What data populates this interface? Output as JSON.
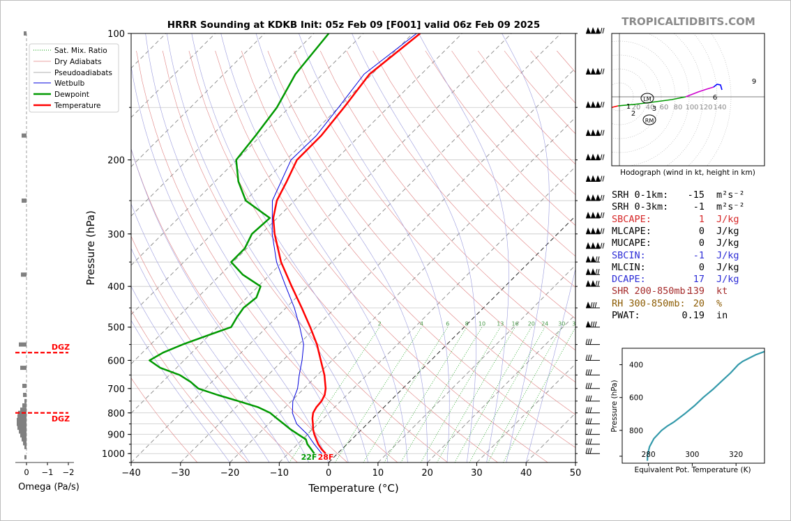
{
  "title": "HRRR Sounding at KDKB Init: 05z Feb 09 [F001] valid 06z Feb 09 2025",
  "watermark": "TROPICALTIDBITS.COM",
  "skewt": {
    "xlabel": "Temperature (°C)",
    "ylabel": "Pressure (hPa)",
    "xlim": [
      -40,
      50
    ],
    "ylim": [
      1050,
      100
    ],
    "x_ticks": [
      -40,
      -30,
      -20,
      -10,
      0,
      10,
      20,
      30,
      40,
      50
    ],
    "y_ticks": [
      100,
      200,
      300,
      400,
      500,
      600,
      700,
      800,
      900,
      1000
    ],
    "legend": [
      "Sat. Mix. Ratio",
      "Dry Adiabats",
      "Pseudoadiabats",
      "Wetbulb",
      "Dewpoint",
      "Temperature"
    ],
    "mixing_ratio_labels": [
      "2",
      "4",
      "6",
      "8",
      "10",
      "13",
      "16",
      "20",
      "24",
      "30",
      "36"
    ],
    "sfc_dewpoint_label": "22F",
    "sfc_temp_label": "28F"
  },
  "omega": {
    "xlabel": "Omega (Pa/s)",
    "x_ticks": [
      "0",
      "−1",
      "−2"
    ],
    "dgz_label": "DGZ",
    "dgz_bottom_hpa": 800,
    "dgz_top_hpa": 575
  },
  "hodograph": {
    "caption": "Hodograph (wind in kt, height in km)",
    "ring_labels": [
      "20",
      "40",
      "60",
      "80",
      "100",
      "120",
      "140"
    ],
    "height_labels": [
      "1",
      "2",
      "3",
      "6",
      "9"
    ],
    "lm_label": "LM",
    "rm_label": "RM"
  },
  "indices": [
    {
      "label": "SRH 0-1km:",
      "value": "-15",
      "unit": "m²s⁻²",
      "color": "#000000"
    },
    {
      "label": "SRH 0-3km:",
      "value": "-1",
      "unit": "m²s⁻²",
      "color": "#000000"
    },
    {
      "label": "SBCAPE:",
      "value": "1",
      "unit": "J/kg",
      "color": "#d62728"
    },
    {
      "label": "MLCAPE:",
      "value": "0",
      "unit": "J/kg",
      "color": "#000000"
    },
    {
      "label": "MUCAPE:",
      "value": "0",
      "unit": "J/kg",
      "color": "#000000"
    },
    {
      "label": "SBCIN:",
      "value": "-1",
      "unit": "J/kg",
      "color": "#2c2cd6"
    },
    {
      "label": "MLCIN:",
      "value": "0",
      "unit": "J/kg",
      "color": "#000000"
    },
    {
      "label": "DCAPE:",
      "value": "17",
      "unit": "J/kg",
      "color": "#2c2cd6"
    },
    {
      "label": "SHR 200-850mb:",
      "value": "139",
      "unit": "kt",
      "color": "#a52a2a"
    },
    {
      "label": "RH 300-850mb:",
      "value": "20",
      "unit": "%",
      "color": "#8b5a00"
    },
    {
      "label": "PWAT:",
      "value": "0.19",
      "unit": "in",
      "color": "#000000"
    }
  ],
  "theta_e": {
    "xlabel": "Equivalent Pot. Temperature (K)",
    "ylabel": "Pressure (hPa)",
    "x_ticks": [
      280,
      300,
      320
    ],
    "y_ticks": [
      400,
      600,
      800
    ],
    "xlim": [
      268,
      333
    ],
    "ylim": [
      1000,
      300
    ]
  },
  "colors": {
    "temperature": "#ff0000",
    "dewpoint": "#009900",
    "wetbulb": "#0000dd",
    "dgz": "#ff0000",
    "theta_e": "#3399aa",
    "hodo_low": "#ff0000",
    "hodo_mid": "#009900",
    "hodo_upper": "#cc00cc",
    "hodo_top": "#0000ff"
  },
  "chart_data": [
    {
      "type": "line",
      "title": "HRRR Sounding at KDKB Init: 05z Feb 09 [F001] valid 06z Feb 09 2025",
      "xlabel": "Temperature (°C)",
      "ylabel": "Pressure (hPa)",
      "xlim": [
        -40,
        50
      ],
      "ylim": [
        1050,
        100
      ],
      "series": [
        {
          "name": "Temperature",
          "pressure": [
            1000,
            975,
            950,
            925,
            900,
            875,
            850,
            825,
            800,
            775,
            750,
            725,
            700,
            650,
            600,
            550,
            500,
            450,
            400,
            350,
            300,
            275,
            250,
            225,
            200,
            175,
            150,
            125,
            100
          ],
          "values": [
            -2.4,
            -4.2,
            -5.8,
            -7.2,
            -8.6,
            -9.9,
            -11,
            -12.2,
            -13.2,
            -13.7,
            -13.9,
            -14.5,
            -15.6,
            -18.6,
            -22.3,
            -26.3,
            -31.2,
            -36.8,
            -43.2,
            -50.3,
            -57.3,
            -60.8,
            -63.6,
            -65.5,
            -67.8,
            -67.8,
            -68.9,
            -70.5,
            -68.5
          ]
        },
        {
          "name": "Dewpoint",
          "pressure": [
            1000,
            975,
            950,
            925,
            900,
            875,
            850,
            825,
            800,
            775,
            750,
            725,
            700,
            675,
            650,
            625,
            600,
            575,
            550,
            525,
            500,
            475,
            450,
            425,
            400,
            375,
            350,
            325,
            300,
            275,
            250,
            225,
            200,
            175,
            150,
            125,
            100
          ],
          "values": [
            -4.7,
            -6.3,
            -8.0,
            -9.3,
            -11.9,
            -14.5,
            -16.9,
            -19.4,
            -21.9,
            -25.6,
            -30.7,
            -36.2,
            -41.4,
            -44.3,
            -47.9,
            -53.3,
            -57.0,
            -55.8,
            -53.5,
            -50.5,
            -47.2,
            -48.0,
            -48.6,
            -48.1,
            -49.5,
            -55.5,
            -60.4,
            -60.4,
            -61.9,
            -61.5,
            -69.9,
            -75.3,
            -80.1,
            -81.1,
            -82.5,
            -85.5,
            -87.0
          ]
        },
        {
          "name": "Wetbulb",
          "pressure": [
            1000,
            950,
            900,
            850,
            800,
            750,
            700,
            650,
            600,
            550,
            500,
            450,
            400,
            350,
            300,
            250,
            200,
            175,
            150,
            125,
            100
          ],
          "values": [
            -3.2,
            -6.6,
            -10.0,
            -14.3,
            -17.4,
            -19.7,
            -21.3,
            -23.7,
            -26.1,
            -29.0,
            -33.3,
            -38.3,
            -44.4,
            -51.2,
            -57.8,
            -64.5,
            -69.0,
            -68.8,
            -70.0,
            -71.6,
            -69.2
          ]
        }
      ]
    },
    {
      "type": "line",
      "xlabel": "Equivalent Pot. Temperature (K)",
      "ylabel": "Pressure (hPa)",
      "xlim": [
        268,
        333
      ],
      "ylim": [
        1000,
        300
      ],
      "series": [
        {
          "pressure": [
            985,
            950,
            900,
            850,
            800,
            775,
            750,
            700,
            650,
            600,
            550,
            500,
            450,
            400,
            380,
            360,
            340,
            320
          ],
          "values": [
            279.5,
            279.6,
            280.5,
            282.5,
            286,
            288.5,
            291.5,
            296.5,
            301,
            305,
            309.5,
            313.5,
            317.5,
            321,
            323,
            326,
            329,
            333
          ]
        }
      ]
    },
    {
      "type": "line",
      "title": "Hodograph (wind in kt, height in km)",
      "series": [
        {
          "name": "0-3 km",
          "u": [
            -16,
            -14,
            -10,
            -2
          ],
          "v": [
            -11,
            -16,
            -15,
            -13
          ]
        },
        {
          "name": "3-6 km",
          "u": [
            -2,
            20,
            45,
            75,
            95
          ],
          "v": [
            -13,
            -11,
            -8,
            -4,
            0
          ]
        },
        {
          "name": "6-9 km",
          "u": [
            95,
            113,
            125,
            135
          ],
          "v": [
            0,
            7,
            11,
            14
          ]
        },
        {
          "name": "9+ km",
          "u": [
            135,
            140,
            145,
            147
          ],
          "v": [
            14,
            18,
            17,
            10
          ]
        }
      ],
      "storm_motion": {
        "LM": {
          "u": -6,
          "v": 2
        },
        "RM": {
          "u": -4,
          "v": -27
        }
      }
    }
  ]
}
